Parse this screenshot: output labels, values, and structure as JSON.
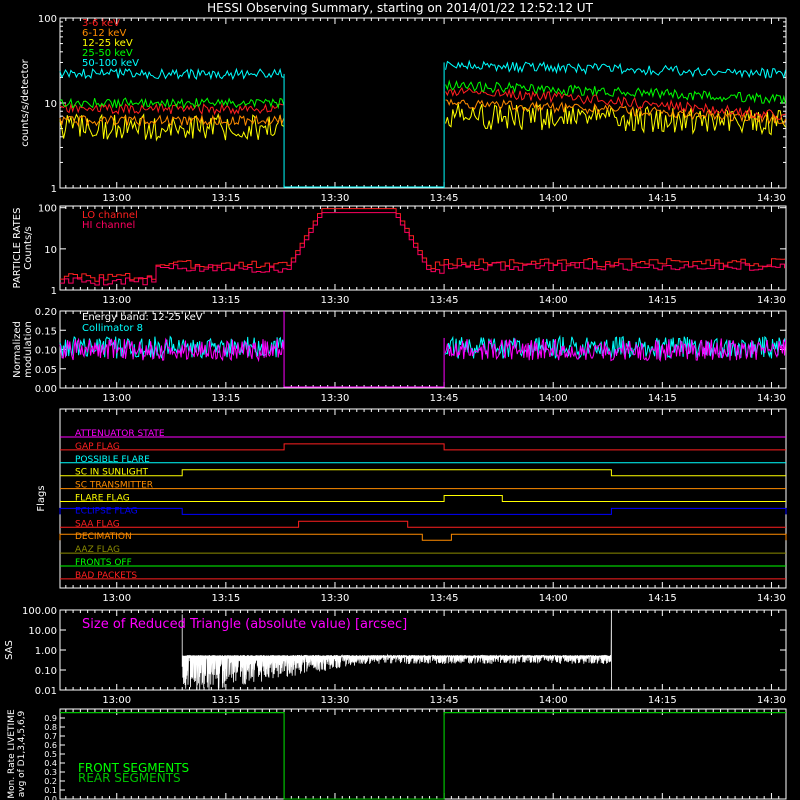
{
  "title": "HESSI Observing Summary, starting on 2014/01/22 12:52:12 UT",
  "colors": {
    "red": "#ff2020",
    "orange": "#ff8c00",
    "yellow": "#ffff00",
    "green": "#00ff00",
    "cyan": "#00ffff",
    "magenta": "#ff00ff",
    "blue": "#0000ff",
    "white": "#ffffff",
    "olive": "#8c8c00",
    "darkgreen": "#00c000",
    "crimson": "#ff0060"
  },
  "time_axis": {
    "start": "12:52:12",
    "end": "14:32",
    "ticks": [
      "13:00",
      "13:15",
      "13:30",
      "13:45",
      "14:00",
      "14:15",
      "14:30"
    ]
  },
  "chart_data": [
    {
      "id": "count-rates",
      "type": "line",
      "ylabel": "counts/s/detector",
      "yscale": "log",
      "ylim": [
        1,
        100
      ],
      "ytick_labels": [
        "1",
        "10",
        "100"
      ],
      "gap": [
        "13:23",
        "13:45"
      ],
      "series": [
        {
          "name": "3-6 keV",
          "color": "red",
          "level_before": 8.5,
          "level_after": [
            14,
            7
          ]
        },
        {
          "name": "6-12 keV",
          "color": "orange",
          "level_before": 6.2,
          "level_after": [
            10,
            6.5
          ]
        },
        {
          "name": "12-25 keV",
          "color": "yellow",
          "level_before": 5.2,
          "level_after": [
            7,
            6
          ]
        },
        {
          "name": "25-50 keV",
          "color": "green",
          "level_before": 10,
          "level_after": [
            16,
            11
          ]
        },
        {
          "name": "50-100 keV",
          "color": "cyan",
          "level_before": 22,
          "level_after": [
            28,
            22
          ]
        }
      ]
    },
    {
      "id": "particle-rates",
      "type": "line",
      "ylabel": "PARTICLE RATES Counts/s",
      "yscale": "log",
      "ylim": [
        1,
        110
      ],
      "ytick_labels": [
        "1",
        "10",
        "100"
      ],
      "series": [
        {
          "name": "LO channel",
          "color": "red"
        },
        {
          "name": "HI channel",
          "color": "crimson"
        }
      ],
      "background_level": 3,
      "peak": {
        "start": "13:23",
        "top_start": "13:28",
        "top_end": "13:38",
        "end": "13:43",
        "value": 95
      }
    },
    {
      "id": "modulation",
      "type": "line",
      "ylabel": "Normalized modulation",
      "ylim": [
        0,
        0.2
      ],
      "ytick_labels": [
        "0.00",
        "0.05",
        "0.10",
        "0.15",
        "0.20"
      ],
      "annotations": [
        "Energy band: 12-25 keV",
        "Collimator 8"
      ],
      "series": [
        {
          "name": "Collimator 8",
          "color": "cyan",
          "level": 0.105
        },
        {
          "name": "",
          "color": "magenta",
          "level": 0.1
        }
      ],
      "gap": [
        "13:23",
        "13:45"
      ]
    },
    {
      "id": "flags",
      "type": "line",
      "ylabel": "Flags",
      "flags": [
        {
          "label": "ATTENUATOR STATE",
          "color": "magenta",
          "high": []
        },
        {
          "label": "GAP FLAG",
          "color": "red",
          "high": [
            [
              "13:23",
              "13:45"
            ]
          ]
        },
        {
          "label": "POSSIBLE FLARE",
          "color": "cyan",
          "high": []
        },
        {
          "label": "SC IN SUNLIGHT",
          "color": "yellow",
          "high": [
            [
              "13:09",
              "14:08"
            ]
          ]
        },
        {
          "label": "SC TRANSMITTER",
          "color": "orange",
          "high": []
        },
        {
          "label": "FLARE FLAG",
          "color": "yellow",
          "high": [
            [
              "13:45",
              "13:53"
            ]
          ]
        },
        {
          "label": "ECLIPSE FLAG",
          "color": "blue",
          "high": [
            [
              "12:52",
              "13:09"
            ],
            [
              "14:08",
              "14:32"
            ]
          ]
        },
        {
          "label": "SAA FLAG",
          "color": "red",
          "high": [
            [
              "13:25",
              "13:40"
            ]
          ]
        },
        {
          "label": "DECIMATION",
          "color": "orange",
          "high": [
            [
              "12:52",
              "13:42"
            ],
            [
              "13:46",
              "14:32"
            ]
          ]
        },
        {
          "label": "AAZ FLAG",
          "color": "olive",
          "high": []
        },
        {
          "label": "FRONTS OFF",
          "color": "green",
          "high": []
        },
        {
          "label": "BAD PACKETS",
          "color": "red",
          "high": []
        }
      ]
    },
    {
      "id": "sas",
      "type": "line",
      "ylabel": "SAS",
      "yscale": "log",
      "ylim": [
        0.01,
        100
      ],
      "ytick_labels": [
        "0.01",
        "0.10",
        "1.00",
        "10.00",
        "100.00"
      ],
      "annotation": "Size of Reduced Triangle (absolute value) [arcsec]",
      "series": [
        {
          "name": "",
          "color": "white"
        }
      ],
      "range": [
        "13:09",
        "14:08"
      ],
      "level": 0.5
    },
    {
      "id": "livetime",
      "type": "line",
      "ylabel": "Mon. Rate LIVETIME avg of D1,3,4,5,6,9",
      "ylim": [
        0,
        1
      ],
      "ytick_labels": [
        "0.0",
        "0.1",
        "0.2",
        "0.3",
        "0.4",
        "0.5",
        "0.6",
        "0.7",
        "0.8",
        "0.9"
      ],
      "series": [
        {
          "name": "FRONT SEGMENTS",
          "color": "green",
          "level": 0.96
        },
        {
          "name": "REAR SEGMENTS",
          "color": "darkgreen",
          "level": 0.96
        }
      ],
      "gap": [
        "13:23",
        "13:45"
      ]
    }
  ]
}
